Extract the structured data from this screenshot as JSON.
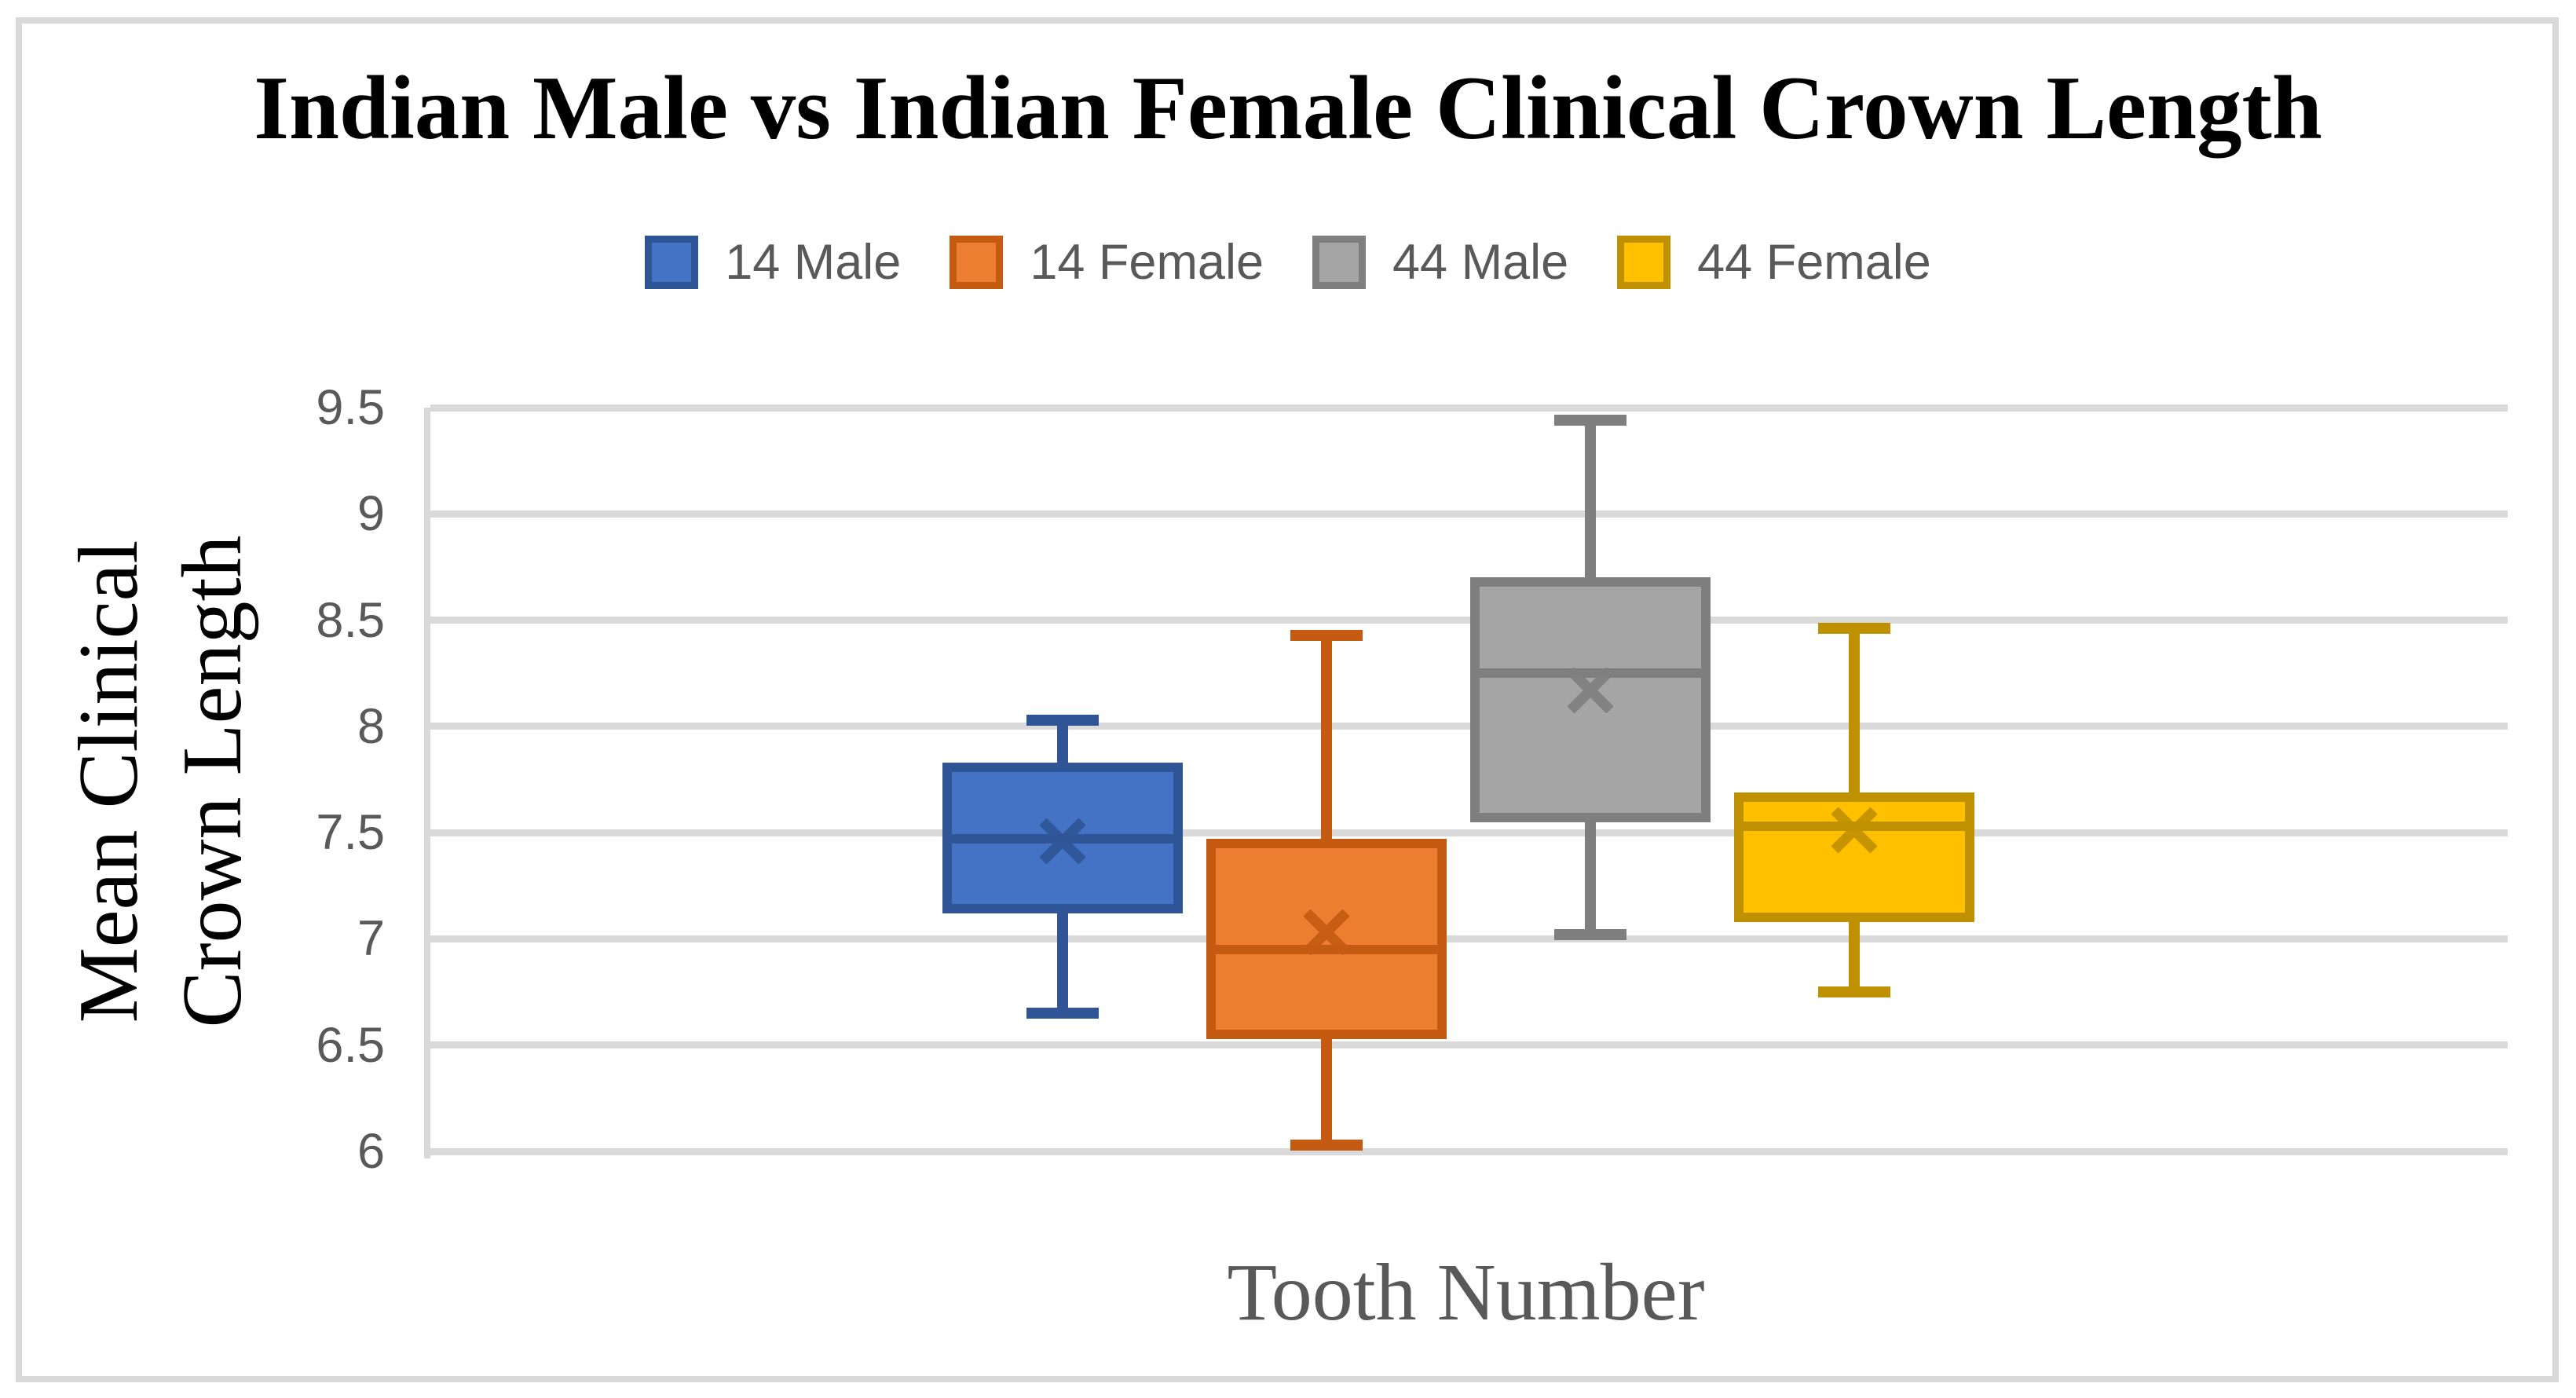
{
  "axes": {
    "y_title_line1": "Mean Clinical",
    "y_title_line2": "Crown Length"
  },
  "chart_data": {
    "type": "boxplot",
    "title": "Indian Male vs Indian Female Clinical Crown Length",
    "xlabel": "Tooth Number",
    "ylabel": "Mean Clinical Crown Length",
    "ylim": [
      6,
      9.5
    ],
    "grid": true,
    "legend_position": "top-center",
    "yticks": [
      {
        "label": "9.5",
        "value": 9.5
      },
      {
        "label": "9",
        "value": 9.0
      },
      {
        "label": "8.5",
        "value": 8.5
      },
      {
        "label": "8",
        "value": 8.0
      },
      {
        "label": "7.5",
        "value": 7.5
      },
      {
        "label": "7",
        "value": 7.0
      },
      {
        "label": "6.5",
        "value": 6.5
      },
      {
        "label": "6",
        "value": 6.0
      }
    ],
    "series": [
      {
        "name": "14 Male",
        "fill": "#4472C4",
        "stroke": "#2F5597",
        "min": 6.65,
        "q1": 7.12,
        "median": 7.47,
        "mean": 7.46,
        "q3": 7.83,
        "max": 8.03
      },
      {
        "name": "14 Female",
        "fill": "#ED7D31",
        "stroke": "#C55A11",
        "min": 6.03,
        "q1": 6.53,
        "median": 6.95,
        "mean": 7.03,
        "q3": 7.47,
        "max": 8.43
      },
      {
        "name": "44 Male",
        "fill": "#A5A5A5",
        "stroke": "#7F7F7F",
        "min": 7.02,
        "q1": 7.55,
        "median": 8.25,
        "mean": 8.17,
        "q3": 8.7,
        "max": 9.44
      },
      {
        "name": "44 Female",
        "fill": "#FFC000",
        "stroke": "#BF9000",
        "min": 6.75,
        "q1": 7.08,
        "median": 7.53,
        "mean": 7.51,
        "q3": 7.69,
        "max": 8.46
      }
    ],
    "colors": {
      "background": "#FFFFFF",
      "frame": "#D9D9D9",
      "gridline": "#D9D9D9",
      "axis_line": "#D9D9D9",
      "tick_text": "#595959",
      "legend_text": "#595959",
      "title_text": "#000000",
      "y_title_text": "#000000",
      "x_title_text": "#595959"
    }
  }
}
